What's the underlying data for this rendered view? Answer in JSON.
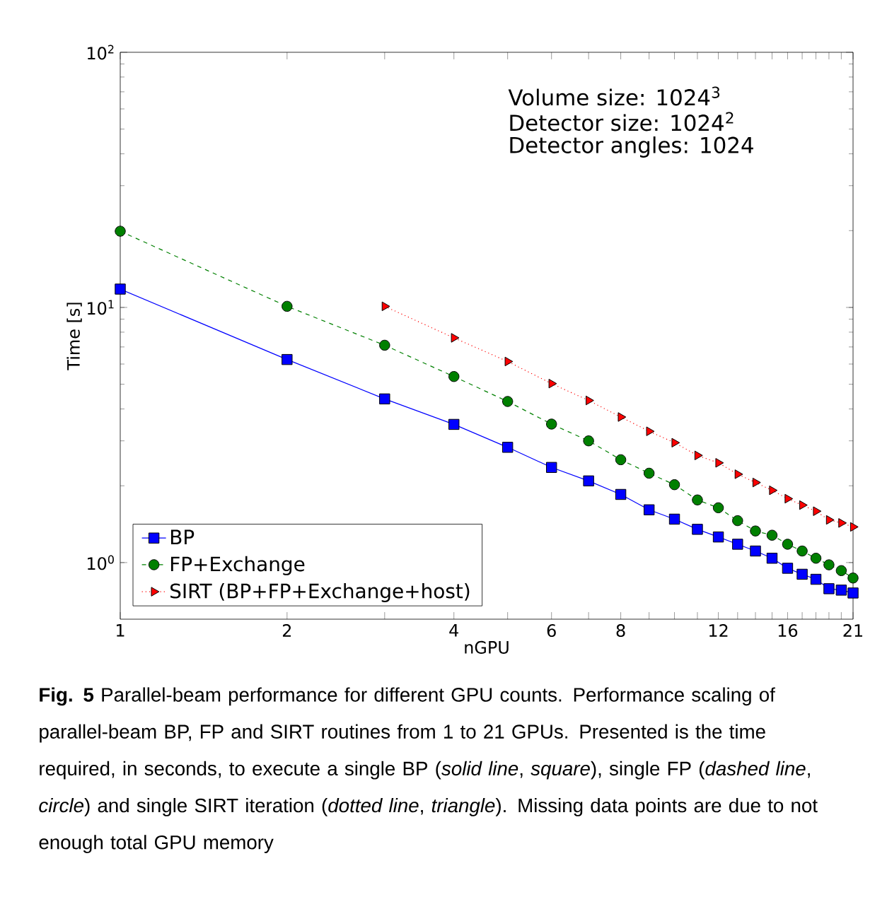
{
  "chart_data": {
    "type": "line",
    "xlabel": "nGPU",
    "ylabel": "Time [s]",
    "log": "xy",
    "legend": "bottom left",
    "x": [
      1,
      2,
      3,
      4,
      5,
      6,
      7,
      8,
      9,
      10,
      11,
      12,
      13,
      14,
      15,
      16,
      17,
      18,
      19,
      20,
      21
    ],
    "xlim": [
      1,
      21
    ],
    "ylim": [
      0.6,
      100
    ],
    "xticks": [
      1,
      2,
      {
        "value": 3,
        "label": null
      },
      4,
      {
        "value": 5,
        "label": null
      },
      6,
      {
        "value": 7,
        "label": null
      },
      8,
      {
        "value": 9,
        "label": null
      },
      {
        "value": 10,
        "label": null
      },
      {
        "value": 11,
        "label": null
      },
      12,
      {
        "value": 13,
        "label": null
      },
      {
        "value": 14,
        "label": null
      },
      {
        "value": 15,
        "label": null
      },
      16,
      {
        "value": 17,
        "label": null
      },
      {
        "value": 18,
        "label": null
      },
      {
        "value": 19,
        "label": null
      },
      {
        "value": 20,
        "label": null
      },
      21
    ],
    "yticks": [
      {
        "value": 1,
        "label": "10$^{0}$"
      },
      {
        "value": 10,
        "label": "10$^{1}$"
      },
      {
        "value": 100,
        "label": "10$^{2}$"
      }
    ],
    "series": [
      {
        "name": "BP",
        "color": "#0000ff",
        "marker": "square",
        "line_style": "solid",
        "values": [
          11.8,
          6.25,
          4.38,
          3.48,
          2.83,
          2.36,
          2.09,
          1.85,
          1.61,
          1.48,
          1.35,
          1.26,
          1.18,
          1.11,
          1.04,
          0.95,
          0.9,
          0.86,
          0.79,
          0.78,
          0.76
        ]
      },
      {
        "name": "FP+Exchange",
        "color": "#008000",
        "marker": "circle",
        "line_style": "dashed",
        "values": [
          19.9,
          10.1,
          7.11,
          5.36,
          4.28,
          3.49,
          3.0,
          2.53,
          2.24,
          2.02,
          1.76,
          1.64,
          1.46,
          1.33,
          1.28,
          1.18,
          1.11,
          1.04,
          0.98,
          0.93,
          0.87
        ]
      },
      {
        "name": "SIRT (BP+FP+Exchange+host)",
        "color": "#ff0000",
        "marker": "triangle",
        "line_style": "dotted",
        "values": [
          null,
          null,
          10.1,
          7.6,
          6.14,
          5.03,
          4.32,
          3.72,
          3.27,
          2.95,
          2.63,
          2.46,
          2.22,
          2.06,
          1.92,
          1.78,
          1.68,
          1.59,
          1.47,
          1.43,
          1.38
        ]
      }
    ],
    "annotations": [
      "Volume   size:   1024$^{3}$",
      "Detector size:   1024$^{2}$",
      "Detector angles: 1024",
      "**Fig. 5**  Parallel-beam performance for different GPU counts. Performance scaling of parallel-beam BP, FP and SIRT routines from 1 to 21 GPUs. Presented is the time required, in seconds, to execute a single BP (*solid line*, *square*), single FP (*dashed line*, *circle*) and single SIRT iteration (*dotted line*, *triangle*). Missing data points are due to not enough total GPU memory"
    ]
  }
}
